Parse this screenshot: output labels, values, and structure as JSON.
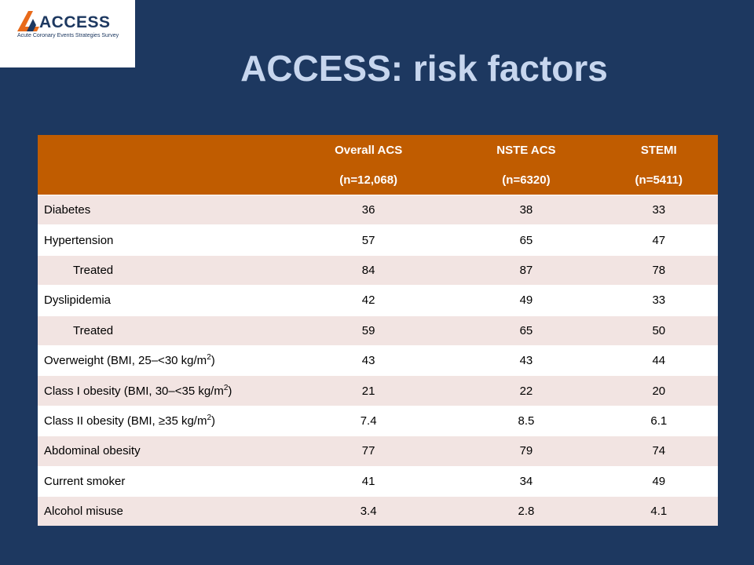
{
  "logo": {
    "wordmark": "ACCESS",
    "subtitle": "Acute Coronary Events Strategies Survey",
    "colors": {
      "mark": "#e86a1a",
      "text": "#1d3860"
    }
  },
  "title": "ACCESS: risk factors",
  "table": {
    "columns": [
      {
        "name": "Overall ACS",
        "n": "(n=12,068)"
      },
      {
        "name": "NSTE ACS",
        "n": "(n=6320)"
      },
      {
        "name": "STEMI",
        "n": "(n=5411)"
      }
    ],
    "rows": [
      {
        "label": "Diabetes",
        "values": [
          "36",
          "38",
          "33"
        ]
      },
      {
        "label": "Hypertension",
        "values": [
          "57",
          "65",
          "47"
        ]
      },
      {
        "label": "Treated",
        "values": [
          "84",
          "87",
          "78"
        ]
      },
      {
        "label": "Dyslipidemia",
        "values": [
          "42",
          "49",
          "33"
        ]
      },
      {
        "label": "Treated",
        "values": [
          "59",
          "65",
          "50"
        ]
      },
      {
        "label": "Overweight (BMI, 25–<30 kg/m",
        "sup": "2",
        "suffix": ")",
        "values": [
          "43",
          "43",
          "44"
        ]
      },
      {
        "label": "Class I obesity (BMI, 30–<35 kg/m",
        "sup": "2",
        "suffix": ")",
        "values": [
          "21",
          "22",
          "20"
        ]
      },
      {
        "label": "Class II obesity (BMI, ≥35 kg/m",
        "sup": "2",
        "suffix": ")",
        "values": [
          "7.4",
          "8.5",
          "6.1"
        ]
      },
      {
        "label": "Abdominal obesity",
        "values": [
          "77",
          "79",
          "74"
        ]
      },
      {
        "label": "Current smoker",
        "values": [
          "41",
          "34",
          "49"
        ]
      },
      {
        "label": "Alcohol misuse",
        "values": [
          "3.4",
          "2.8",
          "4.1"
        ]
      }
    ]
  },
  "colors": {
    "background": "#1d3860",
    "title": "#c7d6ee",
    "header": "#c05c00",
    "row_alt": "#f2e4e2"
  }
}
